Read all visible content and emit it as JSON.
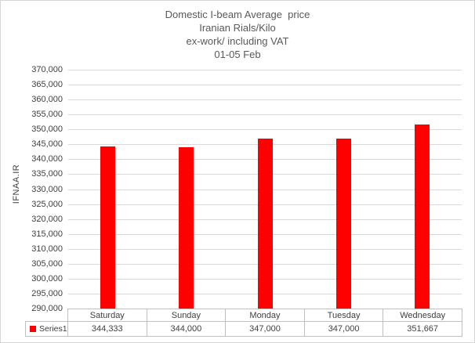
{
  "chart_data": {
    "type": "bar",
    "title_lines": [
      "Domestic I-beam Average  price",
      "Iranian Rials/Kilo",
      "ex-work/ including VAT",
      "01-05 Feb"
    ],
    "ylabel": "IFNAA.IR",
    "categories": [
      "Saturday",
      "Sunday",
      "Monday",
      "Tuesday",
      "Wednesday"
    ],
    "series": [
      {
        "name": "Series1",
        "values": [
          344333,
          344000,
          347000,
          347000,
          351667
        ]
      }
    ],
    "ylim": [
      290000,
      370000
    ],
    "ytick_step": 5000,
    "grid": true,
    "legend_position": "bottom-left-table",
    "bar_color": "#ff0000",
    "gridline_color": "#d9d9d9",
    "table_border_color": "#bfbfbf"
  }
}
